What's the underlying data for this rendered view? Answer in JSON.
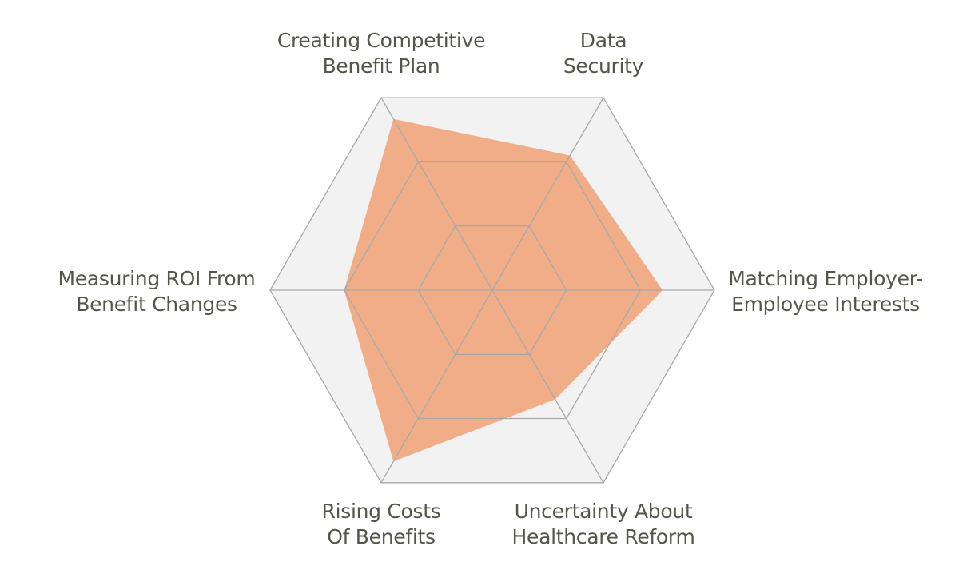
{
  "chart_data": {
    "type": "radar",
    "title": "",
    "axes": [
      {
        "label_lines": [
          "Data",
          "Security"
        ]
      },
      {
        "label_lines": [
          "Matching Employer-",
          "Employee Interests"
        ]
      },
      {
        "label_lines": [
          "Uncertainty About",
          "Healthcare Reform"
        ]
      },
      {
        "label_lines": [
          "Rising Costs",
          "Of Benefits"
        ]
      },
      {
        "label_lines": [
          "Measuring ROI From",
          "Benefit Changes"
        ]
      },
      {
        "label_lines": [
          "Creating Competitive",
          "Benefit Plan"
        ]
      }
    ],
    "levels": 3,
    "range": [
      0,
      3
    ],
    "grid": true,
    "series": [
      {
        "values": [
          2.1,
          2.3,
          1.7,
          2.67,
          2.0,
          2.67
        ],
        "color": "#f0a77f"
      }
    ],
    "colors": {
      "background_fill": "#f2f2f2",
      "grid_line": "#a8a8a8",
      "label_text": "#55554b"
    }
  }
}
